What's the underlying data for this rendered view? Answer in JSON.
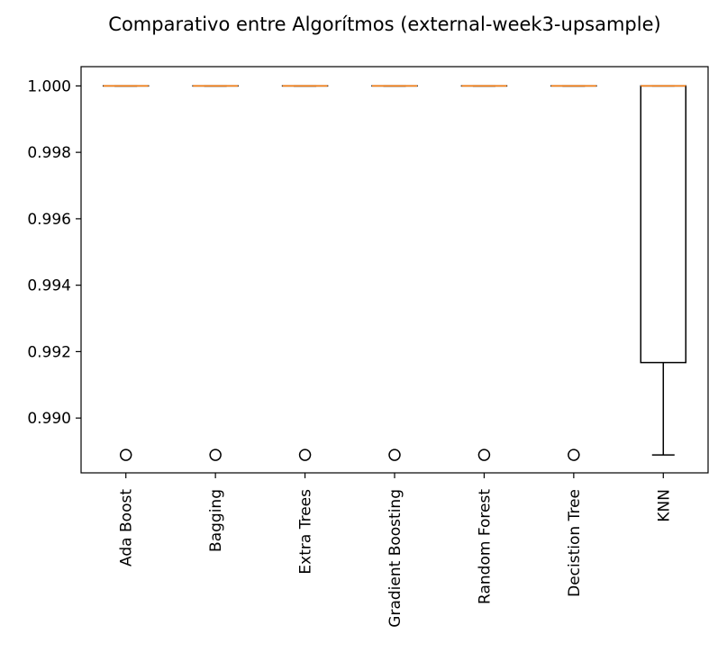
{
  "chart_data": {
    "type": "box",
    "title": "Comparativo entre Algorítmos (external-week3-upsample)",
    "xlabel": "",
    "ylabel": "",
    "ylim": [
      0.98835,
      1.00058
    ],
    "yticks": [
      0.99,
      0.992,
      0.994,
      0.996,
      0.998,
      1.0
    ],
    "ytick_labels": [
      "0.990",
      "0.992",
      "0.994",
      "0.996",
      "0.998",
      "1.000"
    ],
    "grid": false,
    "colors": {
      "box": "#000000",
      "median": "#ff7f0e",
      "flier": "#000000"
    },
    "categories": [
      "Ada Boost",
      "Bagging",
      "Extra Trees",
      "Gradient Boosting",
      "Random Forest",
      "Decistion Tree",
      "KNN"
    ],
    "boxes": [
      {
        "name": "Ada Boost",
        "q1": 1.0,
        "median": 1.0,
        "q3": 1.0,
        "whisker_low": 1.0,
        "whisker_high": 1.0,
        "outliers": [
          0.98889
        ]
      },
      {
        "name": "Bagging",
        "q1": 1.0,
        "median": 1.0,
        "q3": 1.0,
        "whisker_low": 1.0,
        "whisker_high": 1.0,
        "outliers": [
          0.98889
        ]
      },
      {
        "name": "Extra Trees",
        "q1": 1.0,
        "median": 1.0,
        "q3": 1.0,
        "whisker_low": 1.0,
        "whisker_high": 1.0,
        "outliers": [
          0.98889
        ]
      },
      {
        "name": "Gradient Boosting",
        "q1": 1.0,
        "median": 1.0,
        "q3": 1.0,
        "whisker_low": 1.0,
        "whisker_high": 1.0,
        "outliers": [
          0.98889
        ]
      },
      {
        "name": "Random Forest",
        "q1": 1.0,
        "median": 1.0,
        "q3": 1.0,
        "whisker_low": 1.0,
        "whisker_high": 1.0,
        "outliers": [
          0.98889
        ]
      },
      {
        "name": "Decistion Tree",
        "q1": 1.0,
        "median": 1.0,
        "q3": 1.0,
        "whisker_low": 1.0,
        "whisker_high": 1.0,
        "outliers": [
          0.98889
        ]
      },
      {
        "name": "KNN",
        "q1": 0.99167,
        "median": 1.0,
        "q3": 1.0,
        "whisker_low": 0.98889,
        "whisker_high": 1.0,
        "outliers": []
      }
    ]
  }
}
